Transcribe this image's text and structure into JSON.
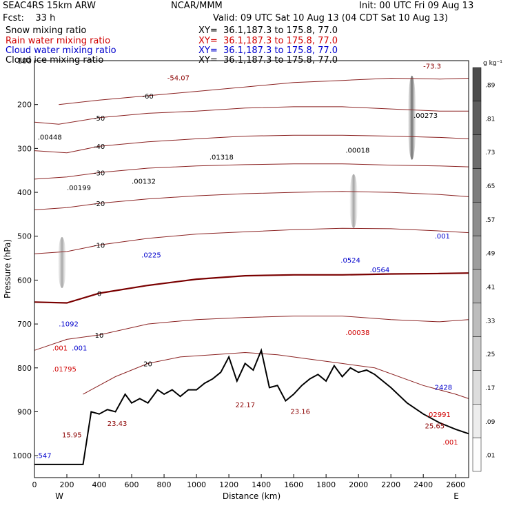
{
  "header": {
    "model": "SEAC4RS 15km ARW",
    "org": "NCAR/MMM",
    "init": "Init: 00 UTC Fri 09 Aug 13",
    "fcst": "Fcst:    33 h",
    "valid": "Valid: 09 UTC Sat 10 Aug 13 (04 CDT Sat 10 Aug 13)",
    "fields": [
      {
        "name": "Snow mixing ratio",
        "xy": "XY=  36.1,187.3 to 175.8, 77.0",
        "color": "#000000"
      },
      {
        "name": "Rain water mixing ratio",
        "xy": "XY=  36.1,187.3 to 175.8, 77.0",
        "color": "#d00000"
      },
      {
        "name": "Cloud water mixing ratio",
        "xy": "XY=  36.1,187.3 to 175.8, 77.0",
        "color": "#0000cc"
      },
      {
        "name": "Cloud ice mixing ratio",
        "xy": "XY=  36.1,187.3 to 175.8, 77.0",
        "color": "#000000"
      }
    ]
  },
  "chart_data": {
    "type": "cross-section contour",
    "xlabel": "Distance (km)",
    "ylabel": "Pressure (hPa)",
    "xlim": [
      0,
      2680
    ],
    "ylim": [
      1050,
      100
    ],
    "x_ticks": [
      0,
      200,
      400,
      600,
      800,
      1000,
      1200,
      1400,
      1600,
      1800,
      2000,
      2200,
      2400,
      2600
    ],
    "y_ticks": [
      100,
      200,
      300,
      400,
      500,
      600,
      700,
      800,
      900,
      1000
    ],
    "y_tick_labels": [
      "100",
      "200",
      "300",
      "400",
      "500",
      "600",
      "700",
      "800",
      "900",
      "1000"
    ],
    "west_label": "W",
    "east_label": "E",
    "colorbar": {
      "unit": "g kg⁻¹",
      "labels": [
        ".89",
        ".81",
        ".73",
        ".65",
        ".57",
        ".49",
        ".41",
        ".33",
        ".25",
        ".17",
        ".09",
        ".01"
      ],
      "values": [
        0.89,
        0.81,
        0.73,
        0.65,
        0.57,
        0.49,
        0.41,
        0.33,
        0.25,
        0.17,
        0.09,
        0.01
      ]
    },
    "temperature_contours": [
      {
        "label": "-60",
        "level": -60,
        "points": [
          [
            150,
            200
          ],
          [
            400,
            190
          ],
          [
            700,
            180
          ],
          [
            1000,
            170
          ],
          [
            1300,
            160
          ],
          [
            1600,
            150
          ],
          [
            1900,
            145
          ],
          [
            2200,
            140
          ],
          [
            2500,
            142
          ],
          [
            2680,
            140
          ]
        ]
      },
      {
        "label": "-50",
        "level": -50,
        "points": [
          [
            0,
            240
          ],
          [
            150,
            245
          ],
          [
            400,
            230
          ],
          [
            700,
            220
          ],
          [
            1000,
            215
          ],
          [
            1300,
            208
          ],
          [
            1600,
            205
          ],
          [
            1900,
            205
          ],
          [
            2200,
            210
          ],
          [
            2500,
            215
          ],
          [
            2680,
            215
          ]
        ]
      },
      {
        "label": "-40",
        "level": -40,
        "points": [
          [
            0,
            305
          ],
          [
            200,
            310
          ],
          [
            400,
            295
          ],
          [
            700,
            285
          ],
          [
            1000,
            278
          ],
          [
            1300,
            272
          ],
          [
            1600,
            270
          ],
          [
            1900,
            270
          ],
          [
            2200,
            272
          ],
          [
            2500,
            275
          ],
          [
            2680,
            278
          ]
        ]
      },
      {
        "label": "-30",
        "level": -30,
        "points": [
          [
            0,
            370
          ],
          [
            200,
            365
          ],
          [
            400,
            355
          ],
          [
            700,
            345
          ],
          [
            1000,
            340
          ],
          [
            1300,
            337
          ],
          [
            1600,
            335
          ],
          [
            1900,
            335
          ],
          [
            2200,
            338
          ],
          [
            2500,
            340
          ],
          [
            2680,
            342
          ]
        ]
      },
      {
        "label": "-20",
        "level": -20,
        "points": [
          [
            0,
            440
          ],
          [
            200,
            435
          ],
          [
            400,
            425
          ],
          [
            700,
            415
          ],
          [
            1000,
            408
          ],
          [
            1300,
            403
          ],
          [
            1600,
            400
          ],
          [
            1900,
            398
          ],
          [
            2200,
            400
          ],
          [
            2500,
            405
          ],
          [
            2680,
            410
          ]
        ]
      },
      {
        "label": "-10",
        "level": -10,
        "points": [
          [
            0,
            540
          ],
          [
            200,
            535
          ],
          [
            400,
            520
          ],
          [
            700,
            505
          ],
          [
            1000,
            495
          ],
          [
            1300,
            490
          ],
          [
            1600,
            485
          ],
          [
            1900,
            482
          ],
          [
            2200,
            483
          ],
          [
            2500,
            488
          ],
          [
            2680,
            492
          ]
        ]
      },
      {
        "label": "0",
        "level": 0,
        "points": [
          [
            0,
            650
          ],
          [
            200,
            652
          ],
          [
            400,
            630
          ],
          [
            700,
            612
          ],
          [
            1000,
            598
          ],
          [
            1300,
            590
          ],
          [
            1600,
            588
          ],
          [
            1900,
            588
          ],
          [
            2200,
            586
          ],
          [
            2500,
            585
          ],
          [
            2680,
            584
          ]
        ]
      },
      {
        "label": "10",
        "level": 10,
        "points": [
          [
            0,
            760
          ],
          [
            200,
            735
          ],
          [
            400,
            725
          ],
          [
            700,
            700
          ],
          [
            1000,
            690
          ],
          [
            1300,
            685
          ],
          [
            1600,
            682
          ],
          [
            1900,
            682
          ],
          [
            2200,
            690
          ],
          [
            2500,
            695
          ],
          [
            2680,
            690
          ]
        ]
      },
      {
        "label": "20",
        "level": 20,
        "points": [
          [
            300,
            860
          ],
          [
            500,
            820
          ],
          [
            700,
            790
          ],
          [
            900,
            775
          ],
          [
            1100,
            770
          ],
          [
            1300,
            765
          ],
          [
            1500,
            770
          ],
          [
            1700,
            780
          ],
          [
            1900,
            790
          ],
          [
            2100,
            800
          ],
          [
            2400,
            840
          ],
          [
            2600,
            860
          ],
          [
            2680,
            870
          ]
        ]
      }
    ],
    "terrain": {
      "x": [
        0,
        300,
        350,
        400,
        450,
        500,
        560,
        600,
        650,
        700,
        760,
        800,
        850,
        900,
        950,
        1000,
        1050,
        1100,
        1150,
        1200,
        1250,
        1300,
        1350,
        1400,
        1450,
        1500,
        1550,
        1600,
        1650,
        1700,
        1750,
        1800,
        1850,
        1900,
        1950,
        2000,
        2050,
        2100,
        2200,
        2300,
        2400,
        2500,
        2600,
        2680
      ],
      "p": [
        1020,
        1020,
        900,
        905,
        895,
        900,
        860,
        880,
        870,
        880,
        850,
        860,
        850,
        865,
        850,
        850,
        835,
        825,
        810,
        775,
        830,
        790,
        805,
        760,
        845,
        840,
        875,
        860,
        840,
        825,
        815,
        830,
        795,
        820,
        800,
        810,
        805,
        815,
        845,
        880,
        905,
        925,
        940,
        950
      ]
    },
    "maxima_labels": [
      {
        "text": "-54.07",
        "color": "#8b0000",
        "x": 820,
        "p": 145
      },
      {
        "text": "-73.3",
        "color": "#8b0000",
        "x": 2400,
        "p": 118
      },
      {
        "text": ".00273",
        "color": "#000000",
        "x": 2340,
        "p": 230
      },
      {
        "text": ".00448",
        "color": "#000000",
        "x": 20,
        "p": 280
      },
      {
        "text": ".01318",
        "color": "#000000",
        "x": 1080,
        "p": 325
      },
      {
        "text": ".00018",
        "color": "#000000",
        "x": 1920,
        "p": 310
      },
      {
        "text": ".00132",
        "color": "#000000",
        "x": 600,
        "p": 380
      },
      {
        "text": ".00199",
        "color": "#000000",
        "x": 200,
        "p": 395
      },
      {
        "text": ".0225",
        "color": "#0000cc",
        "x": 660,
        "p": 548
      },
      {
        "text": ".0524",
        "color": "#0000cc",
        "x": 1890,
        "p": 560
      },
      {
        "text": ".0564",
        "color": "#0000cc",
        "x": 2070,
        "p": 582
      },
      {
        "text": ".001",
        "color": "#0000cc",
        "x": 2470,
        "p": 505
      },
      {
        "text": ".1092",
        "color": "#0000cc",
        "x": 150,
        "p": 705
      },
      {
        "text": ".001",
        "color": "#d00000",
        "x": 110,
        "p": 760
      },
      {
        "text": ".001",
        "color": "#0000cc",
        "x": 230,
        "p": 760
      },
      {
        "text": ".01795",
        "color": "#d00000",
        "x": 110,
        "p": 808
      },
      {
        "text": ".00038",
        "color": "#d00000",
        "x": 1920,
        "p": 725
      },
      {
        "text": "2428",
        "color": "#0000cc",
        "x": 2470,
        "p": 850
      },
      {
        "text": "22.17",
        "color": "#8b0000",
        "x": 1240,
        "p": 890
      },
      {
        "text": "23.16",
        "color": "#8b0000",
        "x": 1580,
        "p": 905
      },
      {
        "text": ".02991",
        "color": "#d00000",
        "x": 2420,
        "p": 912
      },
      {
        "text": "25.65",
        "color": "#8b0000",
        "x": 2410,
        "p": 938
      },
      {
        "text": ".001",
        "color": "#d00000",
        "x": 2520,
        "p": 975
      },
      {
        "text": "15.95",
        "color": "#8b0000",
        "x": 170,
        "p": 958
      },
      {
        "text": "23.43",
        "color": "#8b0000",
        "x": 450,
        "p": 932
      },
      {
        "text": ".547",
        "color": "#0000cc",
        "x": 10,
        "p": 1005
      }
    ],
    "snow_max_gkg": [
      {
        "x": 2330,
        "p": 230,
        "value": 0.9
      },
      {
        "x": 1970,
        "p": 420,
        "value": 0.35
      },
      {
        "x": 170,
        "p": 560,
        "value": 0.3
      }
    ]
  }
}
